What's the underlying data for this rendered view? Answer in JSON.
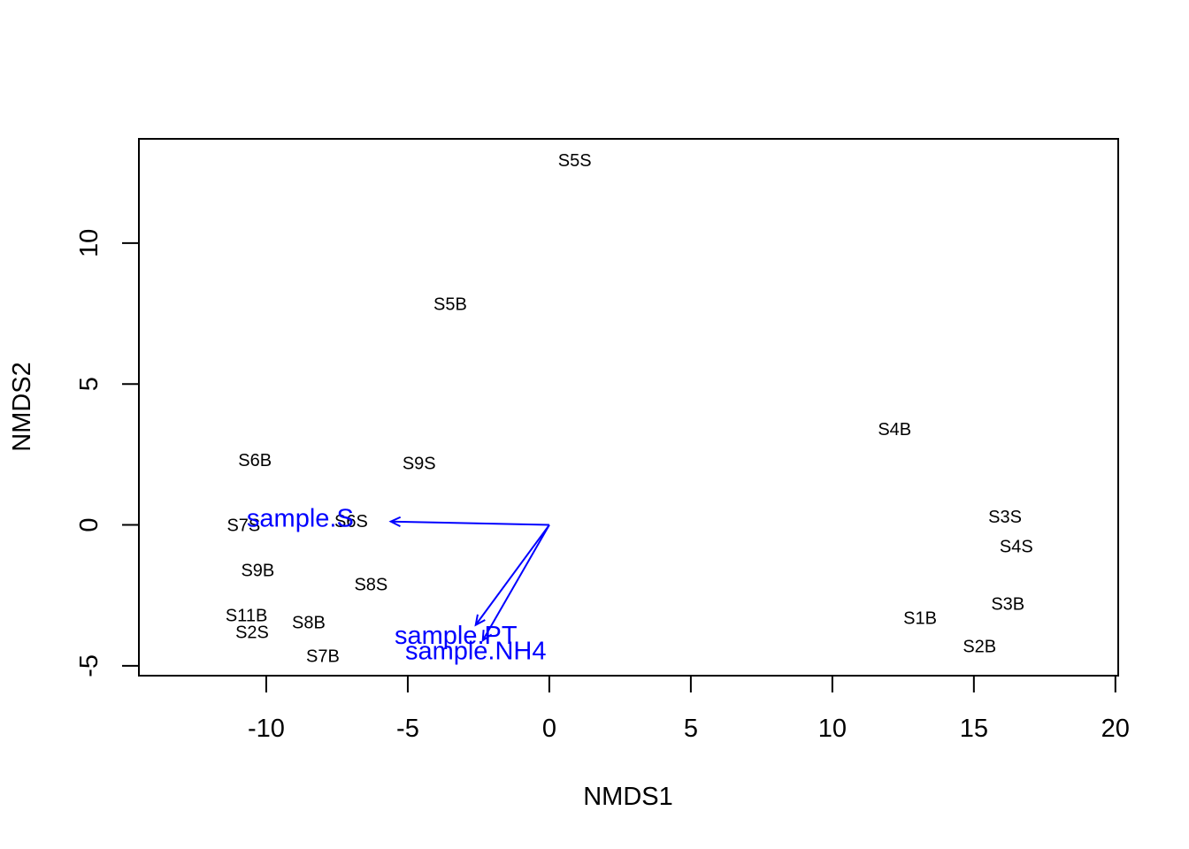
{
  "chart_data": {
    "type": "scatter",
    "title": "",
    "xlabel": "NMDS1",
    "ylabel": "NMDS2",
    "xlim": [
      -14.5,
      20.1
    ],
    "ylim": [
      -5.35,
      13.7
    ],
    "grid": false,
    "xticks": [
      -10,
      -5,
      0,
      5,
      10,
      15,
      20
    ],
    "yticks": [
      -5,
      0,
      5,
      10
    ],
    "xtick_labels": [
      "-10",
      "-5",
      "0",
      "5",
      "10",
      "15",
      "20"
    ],
    "ytick_labels": [
      "-5",
      "0",
      "5",
      "10"
    ],
    "points": [
      {
        "label": "S5S",
        "x": 0.9,
        "y": 12.95
      },
      {
        "label": "S5B",
        "x": -3.5,
        "y": 7.85
      },
      {
        "label": "S4B",
        "x": 12.2,
        "y": 3.4
      },
      {
        "label": "S6B",
        "x": -10.4,
        "y": 2.3
      },
      {
        "label": "S9S",
        "x": -4.6,
        "y": 2.2
      },
      {
        "label": "S7S",
        "x": -10.8,
        "y": 0.0
      },
      {
        "label": "S6S",
        "x": -7.0,
        "y": 0.15
      },
      {
        "label": "S3S",
        "x": 16.1,
        "y": 0.3
      },
      {
        "label": "S4S",
        "x": 16.5,
        "y": -0.75
      },
      {
        "label": "S9B",
        "x": -10.3,
        "y": -1.6
      },
      {
        "label": "S8S",
        "x": -6.3,
        "y": -2.1
      },
      {
        "label": "S3B",
        "x": 16.2,
        "y": -2.8
      },
      {
        "label": "S11B",
        "x": -10.7,
        "y": -3.2
      },
      {
        "label": "S1B",
        "x": 13.1,
        "y": -3.3
      },
      {
        "label": "S8B",
        "x": -8.5,
        "y": -3.45
      },
      {
        "label": "S2S",
        "x": -10.5,
        "y": -3.8
      },
      {
        "label": "S2B",
        "x": 15.2,
        "y": -4.3
      },
      {
        "label": "S7B",
        "x": -8.0,
        "y": -4.65
      }
    ],
    "vectors": [
      {
        "label": "sample.S",
        "x": -5.6,
        "y": 0.12,
        "label_x": -8.8,
        "label_y": 0.25
      },
      {
        "label": "sample.PT",
        "x": -2.6,
        "y": -3.55,
        "label_x": -3.3,
        "label_y": -3.9
      },
      {
        "label": "sample.NH4",
        "x": -2.35,
        "y": -4.1,
        "label_x": -2.6,
        "label_y": -4.45
      }
    ],
    "vector_color": "#0000ff",
    "point_label_color": "#000000"
  }
}
